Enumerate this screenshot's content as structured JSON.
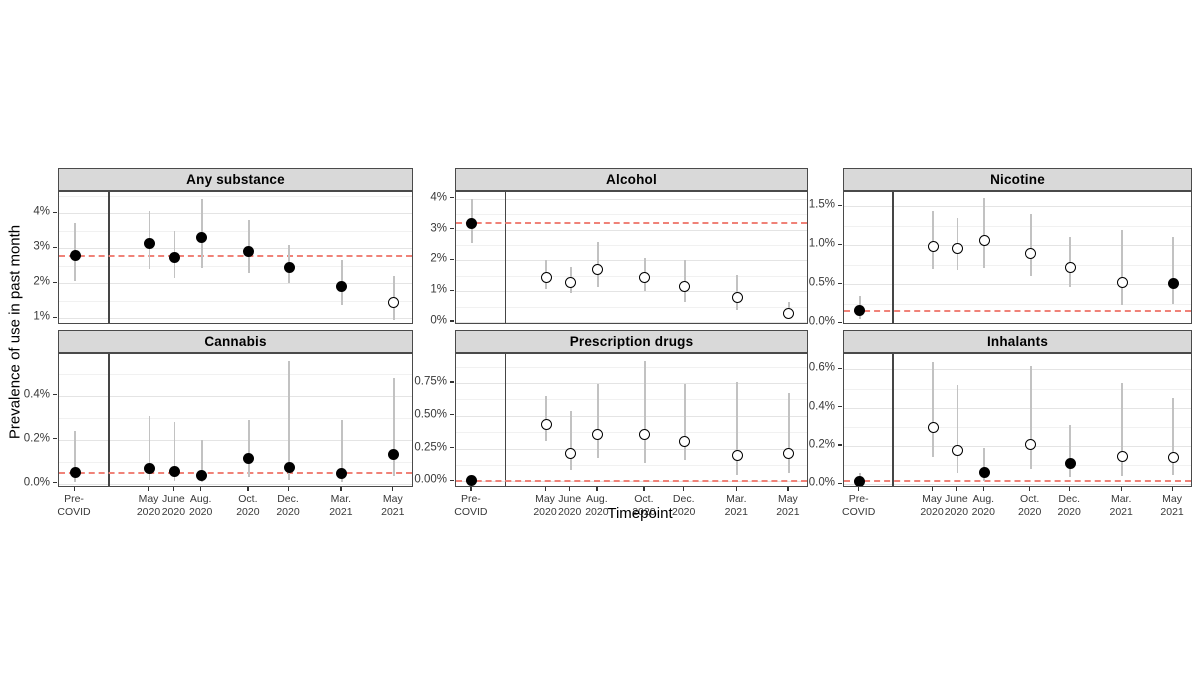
{
  "figure": {
    "ylabel": "Prevalence of use in past month",
    "xlabel": "Timepoint",
    "colors": {
      "ref_line": "#f08278",
      "error_bar": "#c2c2c2",
      "point_fill": "#000000",
      "point_open_fill": "#ffffff",
      "strip_bg": "#d9d9d9",
      "panel_border": "#4a4a4a",
      "grid_major": "#e4e4e4",
      "grid_minor": "#f1f1f1",
      "divider_line": "#454545"
    }
  },
  "x_axis": {
    "label": "Timepoint",
    "divider_pos": 0.138,
    "categories": [
      {
        "id": "pre-covid",
        "lines": [
          "Pre-",
          "COVID"
        ],
        "pos": 0.045
      },
      {
        "id": "may-2020",
        "lines": [
          "May",
          "2020"
        ],
        "pos": 0.255
      },
      {
        "id": "june-2020",
        "lines": [
          "June",
          "2020"
        ],
        "pos": 0.325
      },
      {
        "id": "aug-2020",
        "lines": [
          "Aug.",
          "2020"
        ],
        "pos": 0.402
      },
      {
        "id": "oct-2020",
        "lines": [
          "Oct.",
          "2020"
        ],
        "pos": 0.535
      },
      {
        "id": "dec-2020",
        "lines": [
          "Dec.",
          "2020"
        ],
        "pos": 0.648
      },
      {
        "id": "mar-2021",
        "lines": [
          "Mar.",
          "2021"
        ],
        "pos": 0.797
      },
      {
        "id": "may-2021",
        "lines": [
          "May",
          "2021"
        ],
        "pos": 0.943
      }
    ]
  },
  "chart_data": [
    {
      "type": "scatter",
      "title": "Any substance",
      "ylim": [
        0.8,
        4.6
      ],
      "yticks": [
        {
          "value": 1,
          "label": "1%"
        },
        {
          "value": 2,
          "label": "2%"
        },
        {
          "value": 3,
          "label": "3%"
        },
        {
          "value": 4,
          "label": "4%"
        }
      ],
      "ref_line": 2.78,
      "series": [
        {
          "x": "Pre-COVID",
          "y": 2.78,
          "lo": 2.05,
          "hi": 3.72,
          "filled": true
        },
        {
          "x": "May 2020",
          "y": 3.12,
          "lo": 2.4,
          "hi": 4.05,
          "filled": true
        },
        {
          "x": "June 2020",
          "y": 2.72,
          "lo": 2.15,
          "hi": 3.5,
          "filled": true
        },
        {
          "x": "Aug. 2020",
          "y": 3.3,
          "lo": 2.43,
          "hi": 4.4,
          "filled": true
        },
        {
          "x": "Oct. 2020",
          "y": 2.9,
          "lo": 2.3,
          "hi": 3.8,
          "filled": true
        },
        {
          "x": "Dec. 2020",
          "y": 2.44,
          "lo": 2.0,
          "hi": 3.1,
          "filled": true
        },
        {
          "x": "Mar. 2021",
          "y": 1.9,
          "lo": 1.37,
          "hi": 2.65,
          "filled": true
        },
        {
          "x": "May 2021",
          "y": 1.45,
          "lo": 0.95,
          "hi": 2.2,
          "filled": false
        }
      ]
    },
    {
      "type": "scatter",
      "title": "Alcohol",
      "ylim": [
        -0.1,
        4.22
      ],
      "yticks": [
        {
          "value": 0,
          "label": "0%"
        },
        {
          "value": 1,
          "label": "1%"
        },
        {
          "value": 2,
          "label": "2%"
        },
        {
          "value": 3,
          "label": "3%"
        },
        {
          "value": 4,
          "label": "4%"
        }
      ],
      "ref_line": 3.2,
      "series": [
        {
          "x": "Pre-COVID",
          "y": 3.2,
          "lo": 2.55,
          "hi": 4.0,
          "filled": true
        },
        {
          "x": "May 2020",
          "y": 1.45,
          "lo": 1.05,
          "hi": 2.0,
          "filled": false
        },
        {
          "x": "June 2020",
          "y": 1.28,
          "lo": 0.95,
          "hi": 1.78,
          "filled": false
        },
        {
          "x": "Aug. 2020",
          "y": 1.72,
          "lo": 1.13,
          "hi": 2.6,
          "filled": false
        },
        {
          "x": "Oct. 2020",
          "y": 1.43,
          "lo": 1.0,
          "hi": 2.07,
          "filled": false
        },
        {
          "x": "Dec. 2020",
          "y": 1.15,
          "lo": 0.65,
          "hi": 2.0,
          "filled": false
        },
        {
          "x": "Mar. 2021",
          "y": 0.78,
          "lo": 0.4,
          "hi": 1.53,
          "filled": false
        },
        {
          "x": "May 2021",
          "y": 0.28,
          "lo": 0.1,
          "hi": 0.65,
          "filled": false
        }
      ]
    },
    {
      "type": "scatter",
      "title": "Nicotine",
      "ylim": [
        -0.02,
        1.68
      ],
      "yticks": [
        {
          "value": 0.0,
          "label": "0.0%"
        },
        {
          "value": 0.5,
          "label": "0.5%"
        },
        {
          "value": 1.0,
          "label": "1.0%"
        },
        {
          "value": 1.5,
          "label": "1.5%"
        }
      ],
      "ref_line": 0.16,
      "series": [
        {
          "x": "Pre-COVID",
          "y": 0.16,
          "lo": 0.06,
          "hi": 0.35,
          "filled": true
        },
        {
          "x": "May 2020",
          "y": 0.99,
          "lo": 0.69,
          "hi": 1.44,
          "filled": false
        },
        {
          "x": "June 2020",
          "y": 0.96,
          "lo": 0.68,
          "hi": 1.35,
          "filled": false
        },
        {
          "x": "Aug. 2020",
          "y": 1.06,
          "lo": 0.71,
          "hi": 1.6,
          "filled": false
        },
        {
          "x": "Oct. 2020",
          "y": 0.9,
          "lo": 0.6,
          "hi": 1.4,
          "filled": false
        },
        {
          "x": "Dec. 2020",
          "y": 0.71,
          "lo": 0.46,
          "hi": 1.11,
          "filled": false
        },
        {
          "x": "Mar. 2021",
          "y": 0.52,
          "lo": 0.24,
          "hi": 1.19,
          "filled": false
        },
        {
          "x": "May 2021",
          "y": 0.51,
          "lo": 0.25,
          "hi": 1.1,
          "filled": true
        }
      ]
    },
    {
      "type": "scatter",
      "title": "Cannabis",
      "ylim": [
        -0.02,
        0.59
      ],
      "yticks": [
        {
          "value": 0.0,
          "label": "0.0%"
        },
        {
          "value": 0.2,
          "label": "0.2%"
        },
        {
          "value": 0.4,
          "label": "0.4%"
        }
      ],
      "ref_line": 0.05,
      "series": [
        {
          "x": "Pre-COVID",
          "y": 0.05,
          "lo": 0.005,
          "hi": 0.24,
          "filled": true
        },
        {
          "x": "May 2020",
          "y": 0.07,
          "lo": 0.015,
          "hi": 0.31,
          "filled": true
        },
        {
          "x": "June 2020",
          "y": 0.055,
          "lo": 0.01,
          "hi": 0.28,
          "filled": true
        },
        {
          "x": "Aug. 2020",
          "y": 0.035,
          "lo": 0.005,
          "hi": 0.2,
          "filled": true
        },
        {
          "x": "Oct. 2020",
          "y": 0.115,
          "lo": 0.03,
          "hi": 0.29,
          "filled": true
        },
        {
          "x": "Dec. 2020",
          "y": 0.075,
          "lo": 0.015,
          "hi": 0.56,
          "filled": true
        },
        {
          "x": "Mar. 2021",
          "y": 0.046,
          "lo": 0.005,
          "hi": 0.29,
          "filled": true
        },
        {
          "x": "May 2021",
          "y": 0.133,
          "lo": 0.035,
          "hi": 0.48,
          "filled": true
        }
      ]
    },
    {
      "type": "scatter",
      "title": "Prescription drugs",
      "ylim": [
        -0.05,
        0.97
      ],
      "yticks": [
        {
          "value": 0.0,
          "label": "0.00%"
        },
        {
          "value": 0.25,
          "label": "0.25%"
        },
        {
          "value": 0.5,
          "label": "0.50%"
        },
        {
          "value": 0.75,
          "label": "0.75%"
        }
      ],
      "ref_line": 0.005,
      "series": [
        {
          "x": "Pre-COVID",
          "y": 0.005,
          "lo": 0.0,
          "hi": 0.025,
          "filled": true
        },
        {
          "x": "May 2020",
          "y": 0.435,
          "lo": 0.305,
          "hi": 0.65,
          "filled": false
        },
        {
          "x": "June 2020",
          "y": 0.21,
          "lo": 0.09,
          "hi": 0.54,
          "filled": false
        },
        {
          "x": "Aug. 2020",
          "y": 0.36,
          "lo": 0.175,
          "hi": 0.74,
          "filled": false
        },
        {
          "x": "Oct. 2020",
          "y": 0.36,
          "lo": 0.14,
          "hi": 0.92,
          "filled": false
        },
        {
          "x": "Dec. 2020",
          "y": 0.305,
          "lo": 0.16,
          "hi": 0.74,
          "filled": false
        },
        {
          "x": "Mar. 2021",
          "y": 0.2,
          "lo": 0.05,
          "hi": 0.76,
          "filled": false
        },
        {
          "x": "May 2021",
          "y": 0.21,
          "lo": 0.06,
          "hi": 0.67,
          "filled": false
        }
      ]
    },
    {
      "type": "scatter",
      "title": "Inhalants",
      "ylim": [
        -0.02,
        0.68
      ],
      "yticks": [
        {
          "value": 0.0,
          "label": "0.0%"
        },
        {
          "value": 0.2,
          "label": "0.2%"
        },
        {
          "value": 0.4,
          "label": "0.4%"
        },
        {
          "value": 0.6,
          "label": "0.6%"
        }
      ],
      "ref_line": 0.015,
      "series": [
        {
          "x": "Pre-COVID",
          "y": 0.015,
          "lo": 0.0,
          "hi": 0.06,
          "filled": true
        },
        {
          "x": "May 2020",
          "y": 0.295,
          "lo": 0.14,
          "hi": 0.64,
          "filled": false
        },
        {
          "x": "June 2020",
          "y": 0.175,
          "lo": 0.06,
          "hi": 0.52,
          "filled": false
        },
        {
          "x": "Aug. 2020",
          "y": 0.06,
          "lo": 0.015,
          "hi": 0.19,
          "filled": true
        },
        {
          "x": "Oct. 2020",
          "y": 0.21,
          "lo": 0.08,
          "hi": 0.62,
          "filled": false
        },
        {
          "x": "Dec. 2020",
          "y": 0.11,
          "lo": 0.035,
          "hi": 0.31,
          "filled": true
        },
        {
          "x": "Mar. 2021",
          "y": 0.145,
          "lo": 0.04,
          "hi": 0.53,
          "filled": false
        },
        {
          "x": "May 2021",
          "y": 0.14,
          "lo": 0.05,
          "hi": 0.45,
          "filled": false
        }
      ]
    }
  ]
}
